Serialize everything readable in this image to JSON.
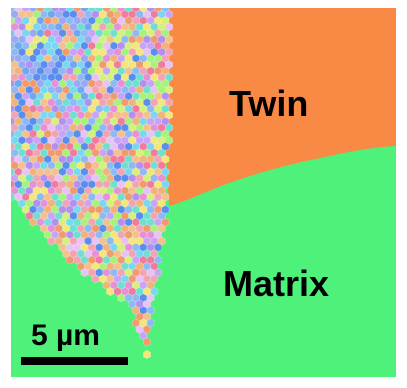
{
  "labels": {
    "twin": "Twin",
    "matrix": "Matrix"
  },
  "scale_bar": {
    "label": "5 µm",
    "length_value": 5,
    "unit": "µm"
  },
  "colors": {
    "matrix": "#4ef27a",
    "twin": "#f98a45",
    "grain_palette": [
      "#f4a3b5",
      "#f6c08c",
      "#e98fd8",
      "#b48ff0",
      "#8fb9f5",
      "#6fe0d0",
      "#a7f27a",
      "#f5e67a",
      "#f27a9e",
      "#7ad7f2",
      "#c9a3f7",
      "#f2b27a",
      "#5b8df0",
      "#f09a6e",
      "#d6f07a",
      "#e6c2f5"
    ]
  }
}
